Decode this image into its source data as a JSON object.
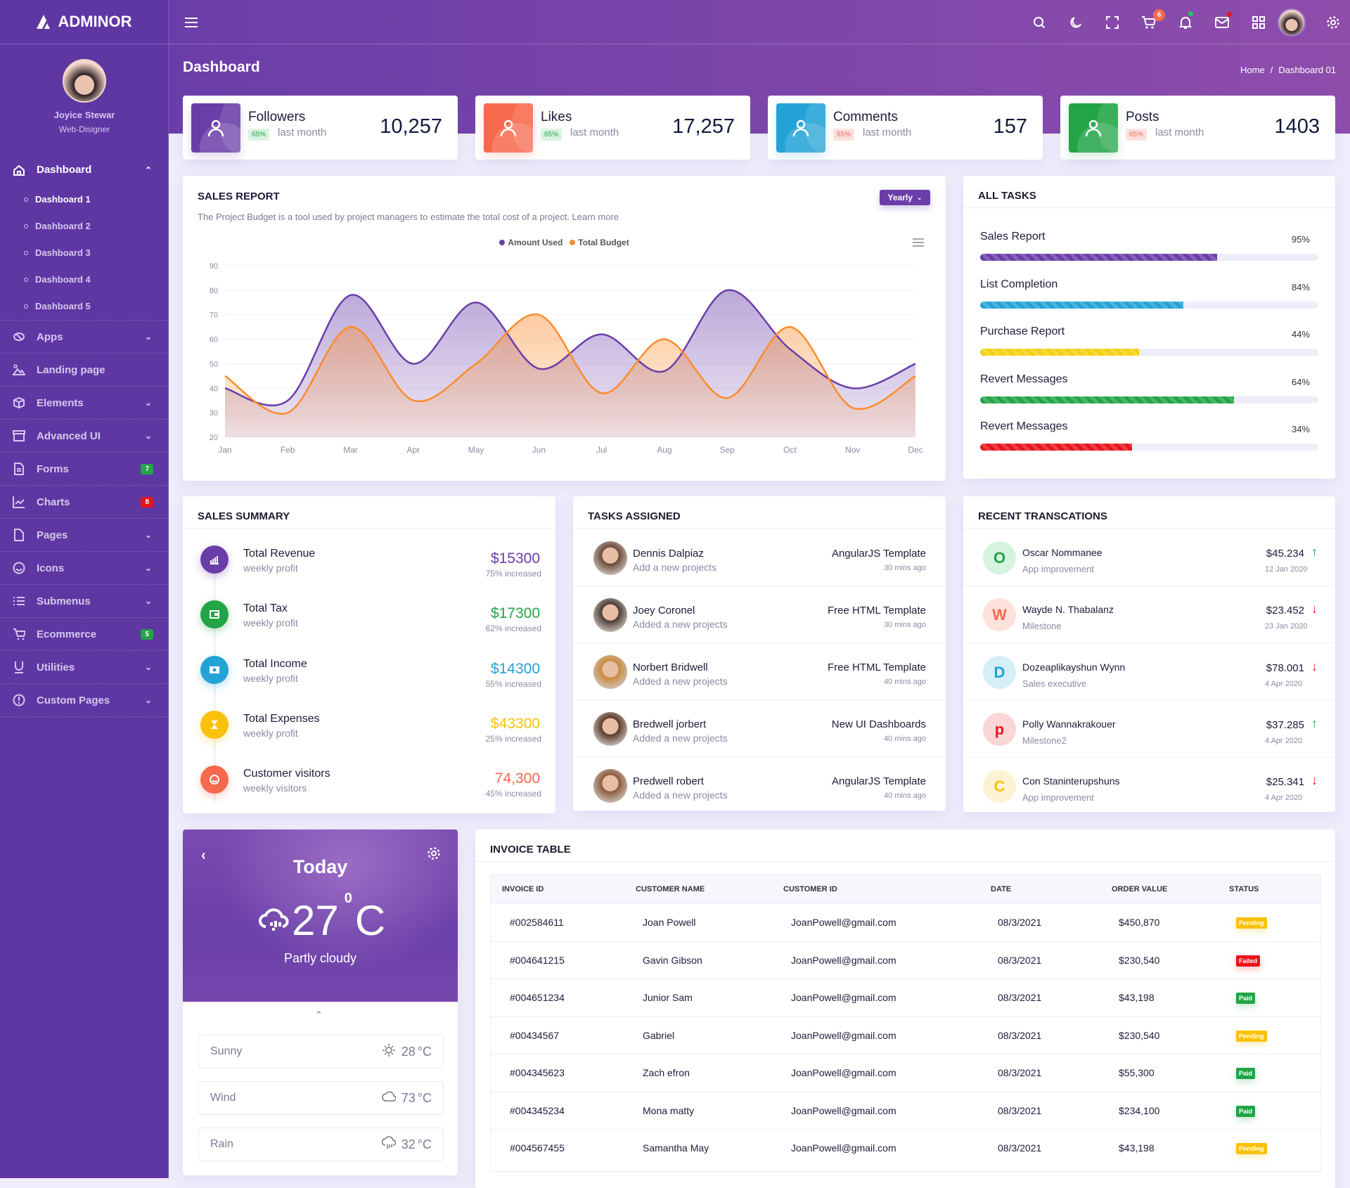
{
  "brand": "ADMINOR",
  "user": {
    "name": "Joyice Stewar",
    "role": "Web-Disigner"
  },
  "header": {
    "cart_count": "6"
  },
  "page": {
    "title": "Dashboard",
    "breadcrumb": [
      "Home",
      "/",
      "Dashboard 01"
    ]
  },
  "sidebar": {
    "items": [
      {
        "label": "Dashboard",
        "icon": "home-icon",
        "chev": "^",
        "sub": [
          "Dashboard 1",
          "Dashboard 2",
          "Dashboard 3",
          "Dashboard 4",
          "Dashboard 5"
        ]
      },
      {
        "label": "Apps",
        "icon": "apps-icon",
        "chev": "v"
      },
      {
        "label": "Landing page",
        "icon": "landscape-icon"
      },
      {
        "label": "Elements",
        "icon": "box-icon",
        "chev": "v"
      },
      {
        "label": "Advanced UI",
        "icon": "archive-icon",
        "chev": "v"
      },
      {
        "label": "Forms",
        "icon": "file-icon",
        "badge": "7",
        "badge_color": "#22a447"
      },
      {
        "label": "Charts",
        "icon": "chart-line-icon",
        "badge": "8",
        "badge_color": "#e8141c"
      },
      {
        "label": "Pages",
        "icon": "page-icon",
        "chev": "v"
      },
      {
        "label": "Icons",
        "icon": "smile-icon",
        "chev": "v"
      },
      {
        "label": "Submenus",
        "icon": "list-icon",
        "chev": "v"
      },
      {
        "label": "Ecommerce",
        "icon": "cart-icon",
        "badge": "5",
        "badge_color": "#22a447"
      },
      {
        "label": "Utilities",
        "icon": "underline-icon",
        "chev": "v"
      },
      {
        "label": "Custom Pages",
        "icon": "alert-circle-icon",
        "chev": "v"
      }
    ]
  },
  "stats": [
    {
      "title": "Followers",
      "badge": "65%",
      "note": "last month",
      "value": "10,257",
      "color": "#6a3ea8",
      "badge_bg": "#d9f3e0",
      "badge_fg": "#22a447"
    },
    {
      "title": "Likes",
      "badge": "65%",
      "note": "last month",
      "value": "17,257",
      "color": "#f7694d",
      "badge_bg": "#d9f3e0",
      "badge_fg": "#22a447"
    },
    {
      "title": "Comments",
      "badge": "65%",
      "note": "last month",
      "value": "157",
      "color": "#23a2d6",
      "badge_bg": "#fde0dd",
      "badge_fg": "#f06a5a"
    },
    {
      "title": "Posts",
      "badge": "65%",
      "note": "last month",
      "value": "1403",
      "color": "#22a447",
      "badge_bg": "#fde0dd",
      "badge_fg": "#f06a5a"
    }
  ],
  "sales_report": {
    "title": "SALES REPORT",
    "desc": "The Project Budget is a tool used by project managers to estimate the total cost of a project. Learn more",
    "period": "Yearly"
  },
  "chart_data": {
    "type": "area",
    "categories": [
      "Jan",
      "Feb",
      "Mar",
      "Apr",
      "May",
      "Jun",
      "Jul",
      "Aug",
      "Sep",
      "Oct",
      "Nov",
      "Dec"
    ],
    "series": [
      {
        "name": "Amount Used",
        "color": "#6a3ea8",
        "values": [
          40,
          35,
          78,
          50,
          75,
          48,
          62,
          47,
          80,
          56,
          40,
          50
        ]
      },
      {
        "name": "Total Budget",
        "color": "#fb8c2c",
        "values": [
          45,
          30,
          65,
          35,
          50,
          70,
          38,
          60,
          36,
          65,
          32,
          45
        ]
      }
    ],
    "yticks": [
      20,
      30,
      40,
      50,
      60,
      70,
      80,
      90
    ],
    "ylim": [
      20,
      90
    ],
    "legend": "top-center",
    "grid": true
  },
  "all_tasks": {
    "title": "ALL TASKS",
    "items": [
      {
        "label": "Sales Report",
        "pct": "95%",
        "fill": 0.7,
        "color": "#6a3ea8"
      },
      {
        "label": "List Completion",
        "pct": "84%",
        "fill": 0.6,
        "color": "#23a2d6"
      },
      {
        "label": "Purchase Report",
        "pct": "44%",
        "fill": 0.47,
        "color": "#f4cf13"
      },
      {
        "label": "Revert Messages",
        "pct": "64%",
        "fill": 0.75,
        "color": "#22a447"
      },
      {
        "label": "Revert Messages",
        "pct": "34%",
        "fill": 0.45,
        "color": "#e8141c"
      }
    ]
  },
  "sales_summary": {
    "title": "SALES SUMMARY",
    "items": [
      {
        "label": "Total Revenue",
        "sub": "weekly profit",
        "value": "$15300",
        "change": "75% increased",
        "color": "#6a3ea8",
        "icon": "bar-chart-icon"
      },
      {
        "label": "Total Tax",
        "sub": "weekly profit",
        "value": "$17300",
        "change": "62% increased",
        "color": "#22a447",
        "icon": "wallet-icon"
      },
      {
        "label": "Total Income",
        "sub": "weekly profit",
        "value": "$14300",
        "change": "55% increased",
        "color": "#23a2d6",
        "icon": "money-icon"
      },
      {
        "label": "Total Expenses",
        "sub": "weekly profit",
        "value": "$43300",
        "change": "25% increased",
        "color": "#f9c10b",
        "icon": "hourglass-icon"
      },
      {
        "label": "Customer visitors",
        "sub": "weekly visitors",
        "value": "74,300",
        "change": "45% increased",
        "color": "#f7694d",
        "icon": "smile-icon"
      }
    ]
  },
  "tasks_assigned": {
    "title": "TASKS ASSIGNED",
    "items": [
      {
        "name": "Dennis Dalpiaz",
        "sub": "Add a new projects",
        "project": "AngularJS Template",
        "time": "30 mins ago",
        "avatar": "#6b4a3a"
      },
      {
        "name": "Joey Coronel",
        "sub": "Added a new projects",
        "project": "Free HTML Template",
        "time": "30 mins ago",
        "avatar": "#4a3a35"
      },
      {
        "name": "Norbert Bridwell",
        "sub": "Added a new projects",
        "project": "Free HTML Template",
        "time": "40 mins ago",
        "avatar": "#c98a3a"
      },
      {
        "name": "Bredwell jorbert",
        "sub": "Added a new projects",
        "project": "New UI Dashboards",
        "time": "40 mins ago",
        "avatar": "#5a3a2a"
      },
      {
        "name": "Predwell robert",
        "sub": "Added a new projects",
        "project": "AngularJS Template",
        "time": "40 mins ago",
        "avatar": "#8a5a3a"
      }
    ]
  },
  "transactions": {
    "title": "RECENT TRANSCATIONS",
    "items": [
      {
        "initial": "O",
        "name": "Oscar Nommanee",
        "sub": "App improvement",
        "amount": "$45.234",
        "date": "12 Jan 2020",
        "trend": "up",
        "fg": "#22a447",
        "bg": "#d6f3df"
      },
      {
        "initial": "W",
        "name": "Wayde N. Thabalanz",
        "sub": "Milestone",
        "amount": "$23.452",
        "date": "23 Jan 2020",
        "trend": "down",
        "fg": "#f7694d",
        "bg": "#fde2dc"
      },
      {
        "initial": "D",
        "name": "Dozeaplikayshun Wynn",
        "sub": "Sales executive",
        "amount": "$78.001",
        "date": "4 Apr 2020",
        "trend": "down",
        "fg": "#23a2d6",
        "bg": "#d5eff6"
      },
      {
        "initial": "p",
        "name": "Polly Wannakrakouer",
        "sub": "Milestone2",
        "amount": "$37.285",
        "date": "4 Apr 2020",
        "trend": "up",
        "fg": "#e8141c",
        "bg": "#fbd6d6"
      },
      {
        "initial": "C",
        "name": "Con Staninterupshuns",
        "sub": "App improvement",
        "amount": "$25.341",
        "date": "4 Apr 2020",
        "trend": "down",
        "fg": "#f9c10b",
        "bg": "#fdf3d3"
      }
    ]
  },
  "weather": {
    "title": "Today",
    "temp": "27",
    "deg": "0",
    "unit": "C",
    "desc": "Partly cloudy",
    "rows": [
      {
        "label": "Sunny",
        "temp": "28",
        "unit": "°C",
        "icon": "sun-icon"
      },
      {
        "label": "Wind",
        "temp": "73",
        "unit": "°C",
        "icon": "cloud-icon"
      },
      {
        "label": "Rain",
        "temp": "32",
        "unit": "°C",
        "icon": "rain-icon"
      }
    ]
  },
  "invoice": {
    "title": "INVOICE TABLE",
    "columns": [
      "INVOICE ID",
      "CUSTOMER NAME",
      "CUSTOMER ID",
      "DATE",
      "ORDER VALUE",
      "STATUS"
    ],
    "rows": [
      [
        "#002584611",
        "Joan Powell",
        "JoanPowell@gmail.com",
        "08/3/2021",
        "$450,870",
        "Pending"
      ],
      [
        "#004641215",
        "Gavin Gibson",
        "JoanPowell@gmail.com",
        "08/3/2021",
        "$230,540",
        "Failed"
      ],
      [
        "#004651234",
        "Junior Sam",
        "JoanPowell@gmail.com",
        "08/3/2021",
        "$43,198",
        "Paid"
      ],
      [
        "#00434567",
        "Gabriel",
        "JoanPowell@gmail.com",
        "08/3/2021",
        "$230,540",
        "Pending"
      ],
      [
        "#004345623",
        "Zach efron",
        "JoanPowell@gmail.com",
        "08/3/2021",
        "$55,300",
        "Paid"
      ],
      [
        "#004345234",
        "Mona matty",
        "JoanPowell@gmail.com",
        "08/3/2021",
        "$234,100",
        "Paid"
      ],
      [
        "#004567455",
        "Samantha May",
        "JoanPowell@gmail.com",
        "08/3/2021",
        "$43,198",
        "Pending"
      ]
    ],
    "status_colors": {
      "Pending": "#f9c10b",
      "Failed": "#e8141c",
      "Paid": "#22a447"
    }
  }
}
